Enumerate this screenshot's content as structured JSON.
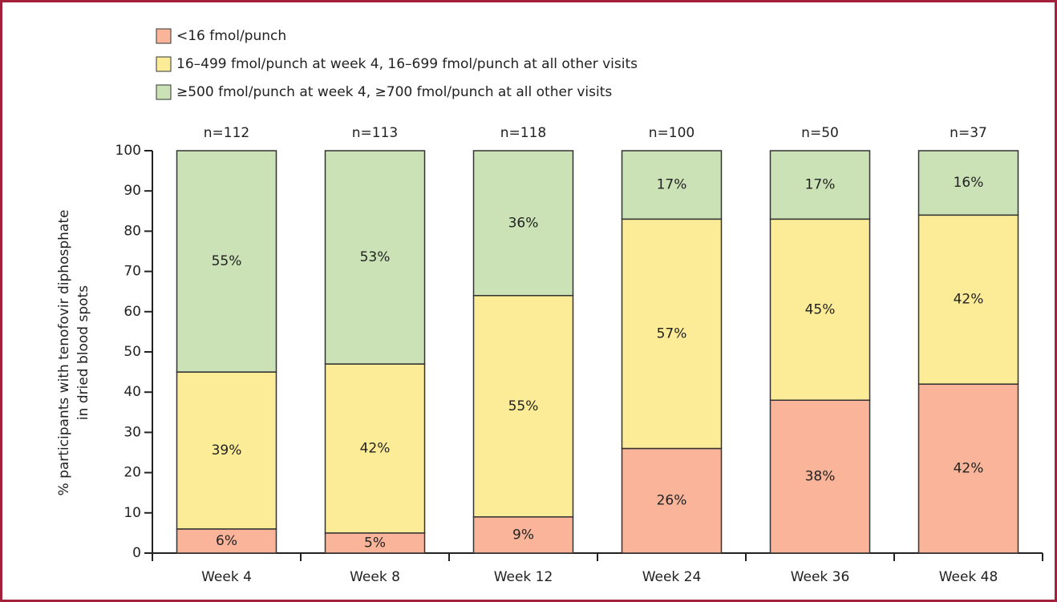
{
  "chart_data": {
    "type": "stacked_bar",
    "ylabel": [
      "% participants with tenofovir diphosphate",
      "in dried blood spots"
    ],
    "categories": [
      "Week 4",
      "Week 8",
      "Week 12",
      "Week 24",
      "Week 36",
      "Week 48"
    ],
    "annotations": [
      "n=112",
      "n=113",
      "n=118",
      "n=100",
      "n=50",
      "n=37"
    ],
    "series": [
      {
        "name": "<16 fmol/punch",
        "color": "#f9b49a",
        "values": [
          6,
          5,
          9,
          26,
          38,
          42
        ],
        "value_labels": [
          "6%",
          "5%",
          "9%",
          "26%",
          "38%",
          "42%"
        ]
      },
      {
        "name": "16–499 fmol/punch at week 4, 16–699 fmol/punch at all other visits",
        "color": "#fdec97",
        "values": [
          39,
          42,
          55,
          57,
          45,
          42
        ],
        "value_labels": [
          "39%",
          "42%",
          "55%",
          "57%",
          "45%",
          "42%"
        ]
      },
      {
        "name": "≥500 fmol/punch at week 4, ≥700 fmol/punch at all other visits",
        "color": "#cae2b6",
        "values": [
          55,
          53,
          36,
          17,
          17,
          16
        ],
        "value_labels": [
          "55%",
          "53%",
          "36%",
          "17%",
          "17%",
          "16%"
        ]
      }
    ],
    "ylim": [
      0,
      100
    ],
    "yticks": [
      0,
      10,
      20,
      30,
      40,
      50,
      60,
      70,
      80,
      90,
      100
    ],
    "legend": "top-left"
  }
}
